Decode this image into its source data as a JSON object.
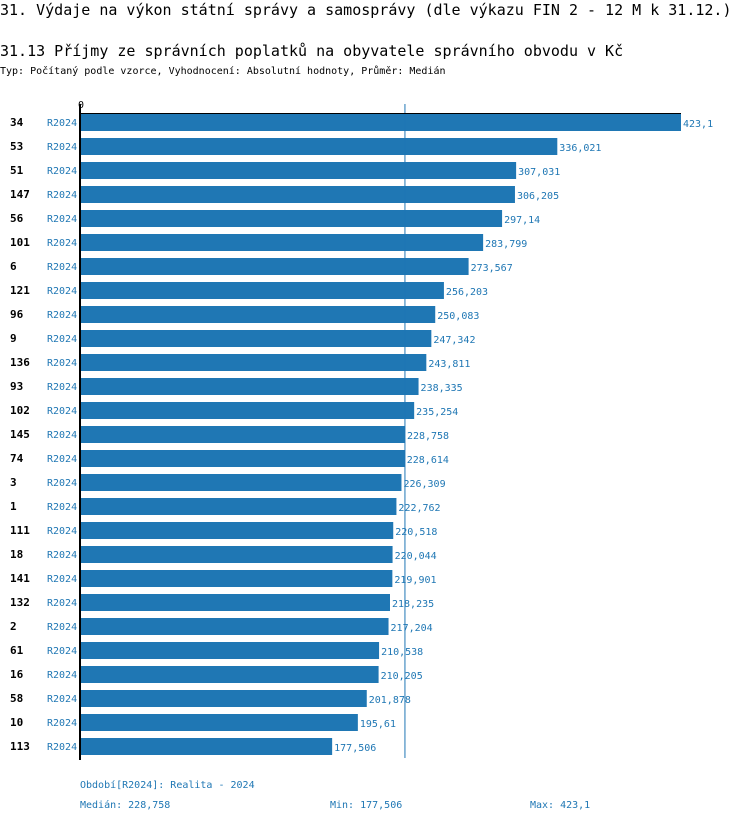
{
  "header": {
    "title": "31. Výdaje na výkon státní správy a samosprávy (dle výkazu FIN 2 - 12 M k 31.12.)",
    "subtitle": "31.13 Příjmy ze správních poplatků na obyvatele správního obvodu v Kč",
    "info": "Typ: Počítaný podle vzorce, Vyhodnocení: Absolutní hodnoty, Průměr: Medián"
  },
  "chart_data": {
    "type": "bar",
    "orientation": "horizontal",
    "title": "31.13 Příjmy ze správních poplatků na obyvatele správního obvodu v Kč",
    "axis_zero_label": "0",
    "xlim": [
      0,
      423.1
    ],
    "series_label": "R2024",
    "categories": [
      "34",
      "53",
      "51",
      "147",
      "56",
      "101",
      "6",
      "121",
      "96",
      "9",
      "136",
      "93",
      "102",
      "145",
      "74",
      "3",
      "1",
      "111",
      "18",
      "141",
      "132",
      "2",
      "61",
      "16",
      "58",
      "10",
      "113"
    ],
    "values": [
      423.1,
      336.021,
      307.031,
      306.205,
      297.14,
      283.799,
      273.567,
      256.203,
      250.083,
      247.342,
      243.811,
      238.335,
      235.254,
      228.758,
      228.614,
      226.309,
      222.762,
      220.518,
      220.044,
      219.901,
      218.235,
      217.204,
      210.538,
      210.205,
      201.878,
      195.61,
      177.506
    ],
    "value_labels": [
      "423,1",
      "336,021",
      "307,031",
      "306,205",
      "297,14",
      "283,799",
      "273,567",
      "256,203",
      "250,083",
      "247,342",
      "243,811",
      "238,335",
      "235,254",
      "228,758",
      "228,614",
      "226,309",
      "222,762",
      "220,518",
      "220,044",
      "219,901",
      "218,235",
      "217,204",
      "210,538",
      "210,205",
      "201,878",
      "195,61",
      "177,506"
    ],
    "median": 228.758,
    "bar_color": "#1f77b4"
  },
  "footer": {
    "period": "Období[R2024]: Realita - 2024",
    "median": "Medián: 228,758",
    "min": "Min: 177,506",
    "max": "Max: 423,1"
  }
}
